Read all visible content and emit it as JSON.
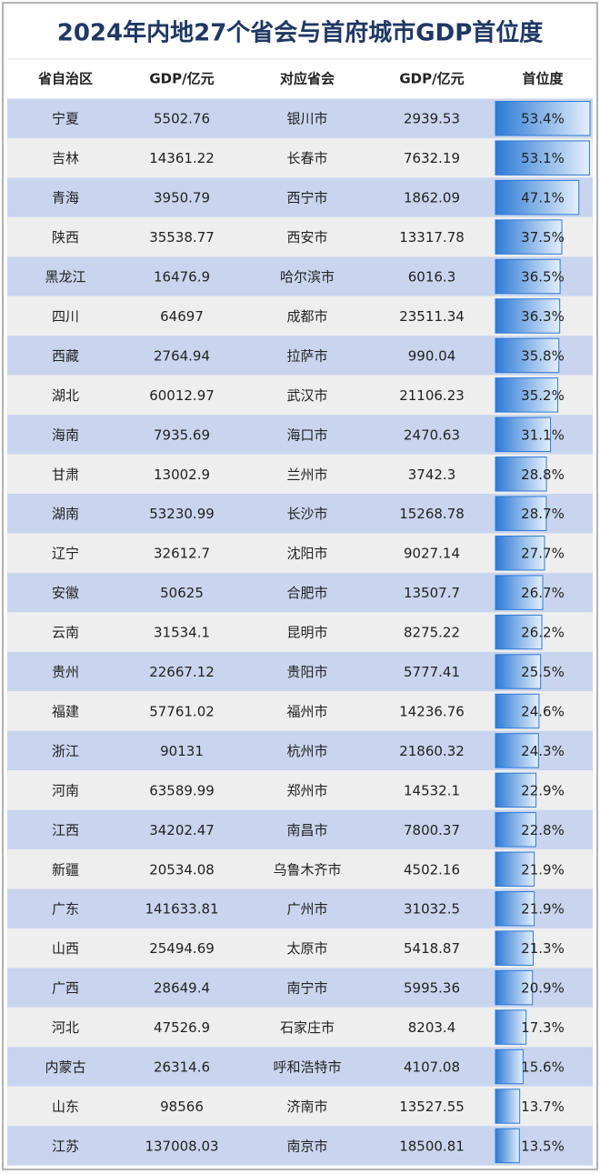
{
  "title": "2024年内地27个省会与首府城市GDP首位度",
  "table": {
    "header": [
      "省自治区",
      "GDP/亿元",
      "对应省会",
      "GDP/亿元",
      "首位度"
    ],
    "rows": [
      [
        "宁夏",
        "5502.76",
        "银川市",
        "2939.53",
        "53.4%"
      ],
      [
        "吉林",
        "14361.22",
        "长春市",
        "7632.19",
        "53.1%"
      ],
      [
        "青海",
        "3950.79",
        "西宁市",
        "1862.09",
        "47.1%"
      ],
      [
        "陕西",
        "35538.77",
        "西安市",
        "13317.78",
        "37.5%"
      ],
      [
        "黑龙江",
        "16476.9",
        "哈尔滨市",
        "6016.3",
        "36.5%"
      ],
      [
        "四川",
        "64697",
        "成都市",
        "23511.34",
        "36.3%"
      ],
      [
        "西藏",
        "2764.94",
        "拉萨市",
        "990.04",
        "35.8%"
      ],
      [
        "湖北",
        "60012.97",
        "武汉市",
        "21106.23",
        "35.2%"
      ],
      [
        "海南",
        "7935.69",
        "海口市",
        "2470.63",
        "31.1%"
      ],
      [
        "甘肃",
        "13002.9",
        "兰州市",
        "3742.3",
        "28.8%"
      ],
      [
        "湖南",
        "53230.99",
        "长沙市",
        "15268.78",
        "28.7%"
      ],
      [
        "辽宁",
        "32612.7",
        "沈阳市",
        "9027.14",
        "27.7%"
      ],
      [
        "安徽",
        "50625",
        "合肥市",
        "13507.7",
        "26.7%"
      ],
      [
        "云南",
        "31534.1",
        "昆明市",
        "8275.22",
        "26.2%"
      ],
      [
        "贵州",
        "22667.12",
        "贵阳市",
        "5777.41",
        "25.5%"
      ],
      [
        "福建",
        "57761.02",
        "福州市",
        "14236.76",
        "24.6%"
      ],
      [
        "浙江",
        "90131",
        "杭州市",
        "21860.32",
        "24.3%"
      ],
      [
        "河南",
        "63589.99",
        "郑州市",
        "14532.1",
        "22.9%"
      ],
      [
        "江西",
        "34202.47",
        "南昌市",
        "7800.37",
        "22.8%"
      ],
      [
        "新疆",
        "20534.08",
        "乌鲁木齐市",
        "4502.16",
        "21.9%"
      ],
      [
        "广东",
        "141633.81",
        "广州市",
        "31032.5",
        "21.9%"
      ],
      [
        "山西",
        "25494.69",
        "太原市",
        "5418.87",
        "21.3%"
      ],
      [
        "广西",
        "28649.4",
        "南宁市",
        "5995.36",
        "20.9%"
      ],
      [
        "河北",
        "47526.9",
        "石家庄市",
        "8203.4",
        "17.3%"
      ],
      [
        "内蒙古",
        "26314.6",
        "呼和浩特市",
        "4107.08",
        "15.6%"
      ],
      [
        "山东",
        "98566",
        "济南市",
        "13527.55",
        "13.7%"
      ],
      [
        "江苏",
        "137008.03",
        "南京市",
        "18500.81",
        "13.5%"
      ]
    ]
  }
}
